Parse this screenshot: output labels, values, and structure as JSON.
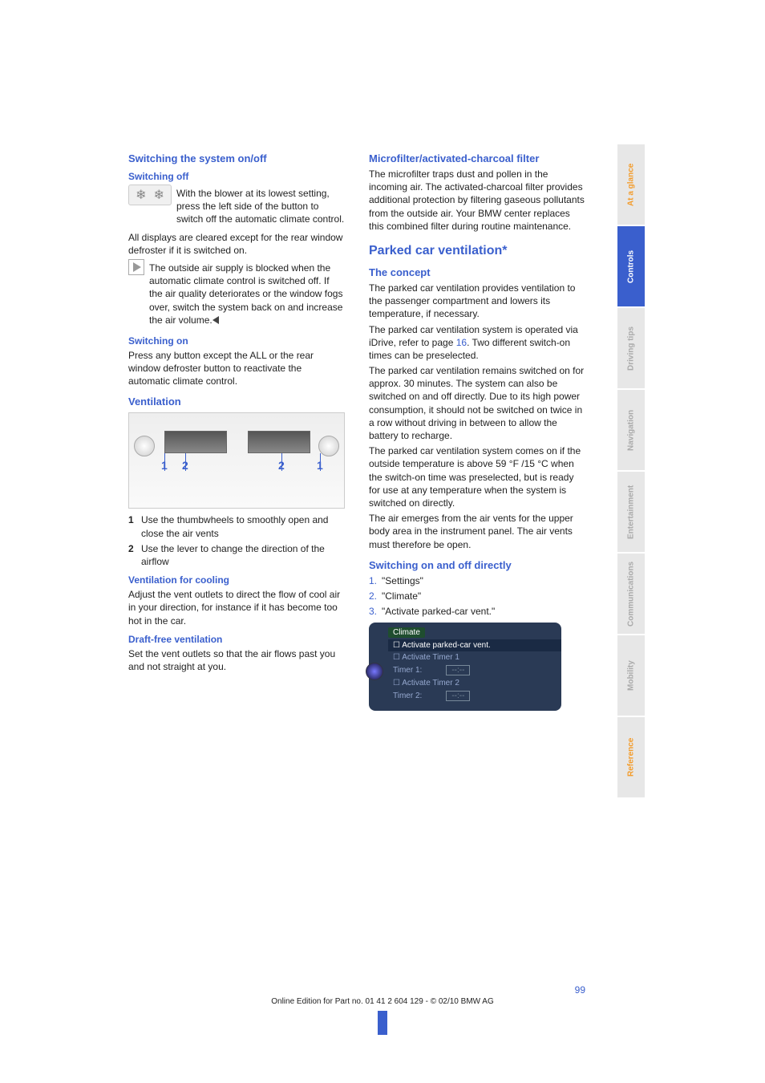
{
  "colors": {
    "blue": "#3a5fcd",
    "orange": "#f39c2c"
  },
  "leftcol": {
    "h2_switch_sys": "Switching the system on/off",
    "h3_switch_off": "Switching off",
    "switch_off_body": "With the blower at its lowest setting, press the left side of the button to switch off the automatic climate control.",
    "switch_off_p2": "All displays are cleared except for the rear window defroster if it is switched on.",
    "switch_off_note": "The outside air supply is blocked when the automatic climate control is switched off. If the air quality deteriorates or the window fogs over, switch the system back on and increase the air volume.",
    "h3_switch_on": "Switching on",
    "switch_on_body": "Press any button except the ALL or the rear window defroster button to reactivate the automatic climate control.",
    "h2_vent": "Ventilation",
    "vent_items": [
      "Use the thumbwheels to smoothly open and close the air vents",
      "Use the lever to change the direction of the airflow"
    ],
    "h3_vent_cool": "Ventilation for cooling",
    "vent_cool_body": "Adjust the vent outlets to direct the flow of cool air in your direction, for instance if it has become too hot in the car.",
    "h3_draft_free": "Draft-free ventilation",
    "draft_free_body": "Set the vent outlets so that the air flows past you and not straight at you."
  },
  "rightcol": {
    "h2_micro": "Microfilter/activated-charcoal filter",
    "micro_body": "The microfilter traps dust and pollen in the incoming air. The activated-charcoal filter provides additional protection by filtering gaseous pollutants from the outside air. Your BMW center replaces this combined filter during routine maintenance.",
    "h1_parked": "Parked car ventilation*",
    "h2_concept": "The concept",
    "concept_p1": "The parked car ventilation provides ventilation to the passenger compartment and lowers its temperature, if necessary.",
    "concept_p2_a": "The parked car ventilation system is operated via iDrive, refer to page ",
    "concept_p2_link": "16",
    "concept_p2_b": ". Two different switch-on times can be preselected.",
    "concept_p3": "The parked car ventilation remains switched on for approx. 30 minutes. The system can also be switched on and off directly. Due to its high power consumption, it should not be switched on twice in a row without driving in between to allow the battery to recharge.",
    "concept_p4": "The parked car ventilation system comes on if the outside temperature is above 59 °F /15 °C when the switch-on time was preselected, but is ready for use at any temperature when the system is switched on directly.",
    "concept_p5": "The air emerges from the air vents for the upper body area in the instrument panel. The air vents must therefore be open.",
    "h2_switch_dir": "Switching on and off directly",
    "switch_items": [
      "\"Settings\"",
      "\"Climate\"",
      "\"Activate parked-car vent.\""
    ],
    "screen": {
      "hdr": "Climate",
      "r1": "☐ Activate parked-car vent.",
      "r2": "☐ Activate Timer 1",
      "r3": "Timer 1:",
      "r4": "☐ Activate Timer 2",
      "r5": "Timer 2:",
      "val": "--:--"
    }
  },
  "sidebar": [
    {
      "label": "At a glance",
      "cls": "orange"
    },
    {
      "label": "Controls",
      "cls": "active"
    },
    {
      "label": "Driving tips",
      "cls": ""
    },
    {
      "label": "Navigation",
      "cls": ""
    },
    {
      "label": "Entertainment",
      "cls": ""
    },
    {
      "label": "Communications",
      "cls": ""
    },
    {
      "label": "Mobility",
      "cls": ""
    },
    {
      "label": "Reference",
      "cls": "orange"
    }
  ],
  "footer": {
    "page": "99",
    "line": "Online Edition for Part no. 01 41 2 604 129 - © 02/10 BMW AG"
  }
}
